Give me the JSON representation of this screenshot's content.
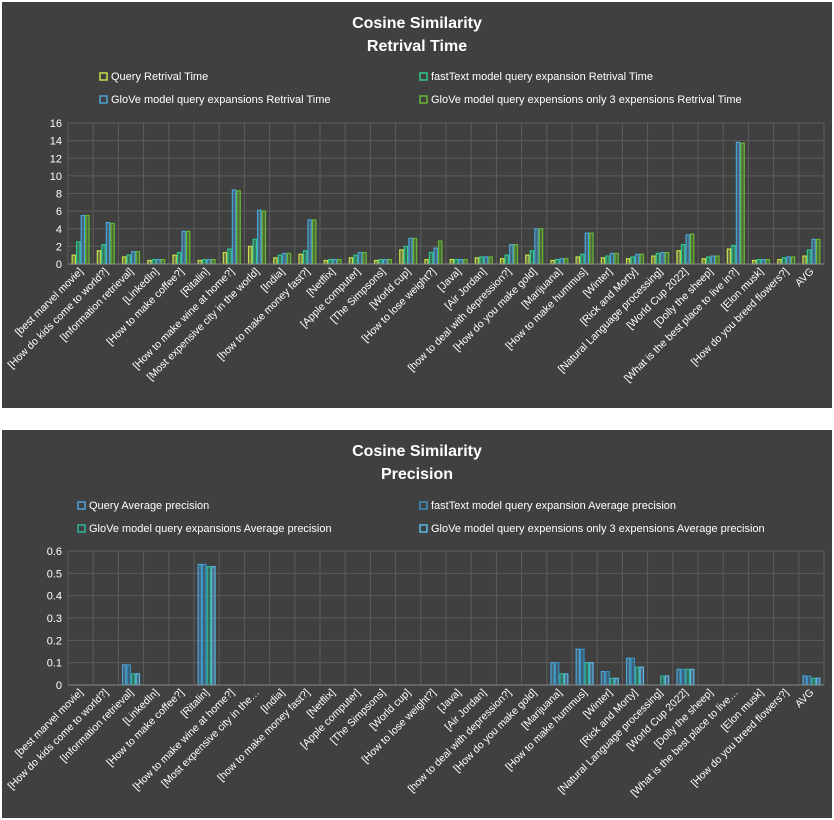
{
  "chart_data": [
    {
      "type": "bar",
      "title": "Cosine Similarity",
      "subtitle": "Retrival Time",
      "ylim": [
        0,
        16
      ],
      "yticks": [
        0,
        2,
        4,
        6,
        8,
        10,
        12,
        14,
        16
      ],
      "legend_position": "top",
      "grid": true,
      "categories": [
        "[best marvel movie]",
        "[How do kids come to world?]",
        "[Information retrieval]",
        "[LinkedIn]",
        "[How to make coffee?]",
        "[Ritalin]",
        "[How to make wine at home?]",
        "[Most expensive city in the world]",
        "[India]",
        "[how to make money fast?]",
        "[Netflix]",
        "[Apple computer]",
        "[The Simpsons]",
        "[World cup]",
        "[How to lose weight?]",
        "[Java]",
        "[Air Jordan]",
        "[how to deal with depression?]",
        "[How do you make gold]",
        "[Marijuana]",
        "[How to make hummus]",
        "[Winter]",
        "[Rick and Morty]",
        "[Natural Language processing]",
        "[World Cup 2022]",
        "[Dolly the sheep]",
        "[What is the best place to live in?]",
        "[Elon musk]",
        "[How do you breed flowers?]",
        "AVG"
      ],
      "series": [
        {
          "name": "Query Retrival Time",
          "color": "#c6e04a",
          "values": [
            1.0,
            1.5,
            0.8,
            0.4,
            1.0,
            0.4,
            1.3,
            2.0,
            0.7,
            1.1,
            0.4,
            0.7,
            0.4,
            1.6,
            0.5,
            0.5,
            0.7,
            0.6,
            1.0,
            0.4,
            0.8,
            0.7,
            0.6,
            0.9,
            1.5,
            0.6,
            1.7,
            0.4,
            0.5,
            0.9
          ]
        },
        {
          "name": "fastText model query expansion Retrival Time",
          "color": "#2fc98b",
          "values": [
            2.5,
            2.2,
            1.0,
            0.5,
            1.3,
            0.5,
            1.7,
            2.8,
            1.0,
            1.5,
            0.5,
            1.0,
            0.5,
            2.0,
            1.3,
            0.5,
            0.8,
            1.0,
            1.5,
            0.5,
            1.1,
            0.9,
            0.8,
            1.2,
            2.2,
            0.8,
            2.1,
            0.5,
            0.7,
            1.6
          ]
        },
        {
          "name": "GloVe model  query expansions Retrival Time",
          "color": "#4aa3d6",
          "values": [
            5.5,
            4.7,
            1.4,
            0.5,
            3.7,
            0.5,
            8.4,
            6.1,
            1.2,
            5.0,
            0.5,
            1.3,
            0.5,
            2.9,
            1.8,
            0.5,
            0.8,
            2.2,
            4.0,
            0.6,
            3.5,
            1.2,
            1.1,
            1.3,
            3.3,
            0.9,
            13.8,
            0.5,
            0.8,
            2.8
          ]
        },
        {
          "name": "GloVe model query expensions only 3 expensions Retrival Time",
          "color": "#67b734",
          "values": [
            5.5,
            4.6,
            1.4,
            0.5,
            3.7,
            0.5,
            8.3,
            6.0,
            1.2,
            5.0,
            0.5,
            1.3,
            0.5,
            2.9,
            2.6,
            0.5,
            0.8,
            2.2,
            4.0,
            0.6,
            3.5,
            1.2,
            1.1,
            1.3,
            3.4,
            0.9,
            13.7,
            0.5,
            0.8,
            2.8
          ]
        }
      ]
    },
    {
      "type": "bar",
      "title": "Cosine Similarity",
      "subtitle": "Precision",
      "ylim": [
        0,
        0.6
      ],
      "yticks": [
        0,
        0.1,
        0.2,
        0.3,
        0.4,
        0.5,
        0.6
      ],
      "legend_position": "top",
      "grid": true,
      "categories": [
        "[best marvel movie]",
        "[How do kids come to world?]",
        "[Information retrieval]",
        "[LinkedIn]",
        "[How to make coffee?]",
        "[Ritalin]",
        "[How to make wine at home?]",
        "[Most expensive city in the…",
        "[India]",
        "[how to make money fast?]",
        "[Netflix]",
        "[Apple computer]",
        "[The Simpsons]",
        "[World cup]",
        "[How to lose weight?]",
        "[Java]",
        "[Air Jordan]",
        "[how to deal with depression?]",
        "[How do you make gold]",
        "[Marijuana]",
        "[How to make hummus]",
        "[Winter]",
        "[Rick and Morty]",
        "[Natural Language processing]",
        "[World Cup 2022]",
        "[Dolly the sheep]",
        "[What is the best place to live…",
        "[Elon musk]",
        "[How do you breed flowers?]",
        "AVG"
      ],
      "series": [
        {
          "name": "Query Average precision",
          "color": "#4aa3d6",
          "values": [
            0,
            0,
            0.09,
            0,
            0,
            0.54,
            0,
            0,
            0,
            0,
            0,
            0,
            0,
            0,
            0,
            0,
            0,
            0,
            0,
            0.1,
            0.16,
            0.06,
            0.12,
            0,
            0.07,
            0,
            0,
            0,
            0,
            0.04
          ]
        },
        {
          "name": "fastText model query expansion Average precision",
          "color": "#3a8fc2",
          "values": [
            0,
            0,
            0.09,
            0,
            0,
            0.54,
            0,
            0,
            0,
            0,
            0,
            0,
            0,
            0,
            0,
            0,
            0,
            0,
            0,
            0.1,
            0.16,
            0.06,
            0.12,
            0,
            0.07,
            0,
            0,
            0,
            0,
            0.04
          ]
        },
        {
          "name": "GloVe model  query expansions Average precision",
          "color": "#2fb59a",
          "values": [
            0,
            0,
            0.05,
            0,
            0,
            0.53,
            0,
            0,
            0,
            0,
            0,
            0,
            0,
            0,
            0,
            0,
            0,
            0,
            0,
            0.05,
            0.1,
            0.03,
            0.08,
            0.04,
            0.07,
            0,
            0,
            0,
            0,
            0.03
          ]
        },
        {
          "name": "GloVe model query expensions only 3 expensions Average precision",
          "color": "#5bb8e8",
          "values": [
            0,
            0,
            0.05,
            0,
            0,
            0.53,
            0,
            0,
            0,
            0,
            0,
            0,
            0,
            0,
            0,
            0,
            0,
            0,
            0,
            0.05,
            0.1,
            0.03,
            0.08,
            0.04,
            0.07,
            0,
            0,
            0,
            0,
            0.03
          ]
        }
      ]
    }
  ]
}
